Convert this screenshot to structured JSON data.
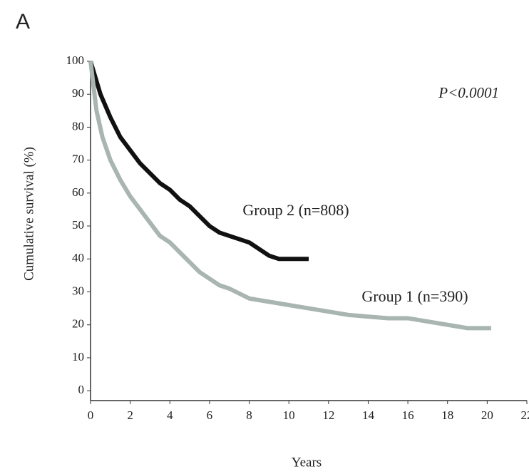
{
  "chart_data": {
    "type": "line",
    "panel_label": "A",
    "x_label": "Years",
    "y_label": "Cumulative survival (%)",
    "annotation": "P<0.0001",
    "xlim": [
      0,
      22
    ],
    "xticks": [
      0,
      2,
      4,
      6,
      8,
      10,
      12,
      14,
      16,
      18,
      20,
      22
    ],
    "ylim": [
      -3,
      100
    ],
    "yticks": [
      0,
      10,
      20,
      30,
      40,
      50,
      60,
      70,
      80,
      90,
      100
    ],
    "series": [
      {
        "name": "Group 2 (n=808)",
        "color": "#111111",
        "x": [
          0,
          0.5,
          1,
          1.5,
          2,
          2.5,
          3,
          3.5,
          4,
          4.5,
          5,
          5.5,
          6,
          6.5,
          7,
          8,
          8.5,
          9,
          9.5,
          11
        ],
        "values": [
          100,
          90,
          83,
          77,
          73,
          69,
          66,
          63,
          61,
          58,
          56,
          53,
          50,
          48,
          47,
          45,
          43,
          41,
          40,
          40
        ]
      },
      {
        "name": "Group 1 (n=390)",
        "color": "#a9b5b0",
        "x": [
          0,
          0.3,
          0.6,
          1,
          1.5,
          2,
          2.5,
          3,
          3.5,
          4,
          4.5,
          5,
          5.5,
          6,
          6.5,
          7,
          8,
          9,
          10,
          11,
          12,
          13,
          15,
          16,
          17,
          18,
          19,
          20.2
        ],
        "values": [
          100,
          85,
          77,
          70,
          64,
          59,
          55,
          51,
          47,
          45,
          42,
          39,
          36,
          34,
          32,
          31,
          28,
          27,
          26,
          25,
          24,
          23,
          22,
          22,
          21,
          20,
          19,
          19
        ]
      }
    ]
  }
}
